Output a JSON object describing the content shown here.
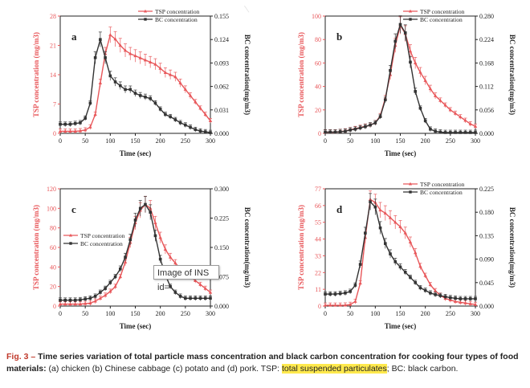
{
  "chart_data": [
    {
      "type": "line",
      "panel_label": "a",
      "xlabel": "Time (sec)",
      "ylabel_left": "TSP concentration (mg/m3)",
      "ylabel_right": "BC concentration(mg/m3)",
      "xlim": [
        0,
        300
      ],
      "ylim_left": [
        0,
        28
      ],
      "ylim_right": [
        0,
        0.155
      ],
      "xticks": [
        0,
        50,
        100,
        150,
        200,
        250,
        300
      ],
      "yticks_left": [
        0,
        7,
        14,
        21,
        28
      ],
      "yticks_right": [
        0.0,
        0.031,
        0.062,
        0.093,
        0.124,
        0.155
      ],
      "ytick_labels_right": [
        "0.000",
        "0.031",
        "0.062",
        "0.093",
        "0.124",
        "0.155"
      ],
      "legend_position": "top-right",
      "series": [
        {
          "name": "TSP concentration",
          "axis": "left",
          "color": "#e8575a",
          "marker": "triangle",
          "x": [
            0,
            10,
            20,
            30,
            40,
            50,
            60,
            70,
            80,
            90,
            100,
            110,
            120,
            130,
            140,
            150,
            160,
            170,
            180,
            190,
            200,
            210,
            220,
            230,
            240,
            250,
            260,
            270,
            280,
            290,
            300
          ],
          "y": [
            0.5,
            0.5,
            0.5,
            0.5,
            0.6,
            0.8,
            1.5,
            4.5,
            12.0,
            19.0,
            23.5,
            22.5,
            21.0,
            19.8,
            19.0,
            18.5,
            18.0,
            17.5,
            17.0,
            16.5,
            15.5,
            14.5,
            14.0,
            13.5,
            12.0,
            10.5,
            9.0,
            7.5,
            6.0,
            4.5,
            3.0
          ]
        },
        {
          "name": "BC concentration",
          "axis": "right",
          "color": "#333333",
          "marker": "square",
          "x": [
            0,
            10,
            20,
            30,
            40,
            50,
            60,
            70,
            80,
            90,
            100,
            110,
            120,
            130,
            140,
            150,
            160,
            170,
            180,
            190,
            200,
            210,
            220,
            230,
            240,
            250,
            260,
            270,
            280,
            290,
            300
          ],
          "y": [
            0.012,
            0.012,
            0.012,
            0.013,
            0.014,
            0.02,
            0.04,
            0.1,
            0.124,
            0.1,
            0.076,
            0.068,
            0.063,
            0.058,
            0.058,
            0.053,
            0.05,
            0.048,
            0.046,
            0.04,
            0.032,
            0.025,
            0.022,
            0.018,
            0.014,
            0.011,
            0.008,
            0.005,
            0.003,
            0.002,
            0.001
          ]
        }
      ]
    },
    {
      "type": "line",
      "panel_label": "b",
      "xlabel": "Time (sec)",
      "ylabel_left": "TSP concentration (mg/m3)",
      "ylabel_right": "BC concentration(mg/m3)",
      "xlim": [
        0,
        300
      ],
      "ylim_left": [
        0,
        100
      ],
      "ylim_right": [
        0,
        0.28
      ],
      "xticks": [
        0,
        50,
        100,
        150,
        200,
        250,
        300
      ],
      "yticks_left": [
        0,
        20,
        40,
        60,
        80,
        100
      ],
      "yticks_right": [
        0.0,
        0.056,
        0.112,
        0.168,
        0.224,
        0.28
      ],
      "ytick_labels_right": [
        "0.000",
        "0.056",
        "0.112",
        "0.168",
        "0.224",
        "0.280"
      ],
      "legend_position": "top-right",
      "series": [
        {
          "name": "TSP concentration",
          "axis": "left",
          "color": "#e8575a",
          "marker": "triangle",
          "x": [
            0,
            10,
            20,
            30,
            40,
            50,
            60,
            70,
            80,
            90,
            100,
            110,
            120,
            130,
            140,
            150,
            160,
            170,
            180,
            190,
            200,
            210,
            220,
            230,
            240,
            250,
            260,
            270,
            280,
            290,
            300
          ],
          "y": [
            1,
            1,
            1,
            1.5,
            2,
            3,
            4,
            5,
            6,
            7,
            9,
            15,
            30,
            50,
            75,
            92,
            85,
            70,
            60,
            52,
            45,
            38,
            32,
            28,
            24,
            20,
            17,
            14,
            11,
            8,
            6
          ]
        },
        {
          "name": "BC concentration",
          "axis": "right",
          "color": "#333333",
          "marker": "square",
          "x": [
            0,
            10,
            20,
            30,
            40,
            50,
            60,
            70,
            80,
            90,
            100,
            110,
            120,
            130,
            140,
            150,
            160,
            170,
            180,
            190,
            200,
            210,
            220,
            230,
            240,
            250,
            260,
            270,
            280,
            290,
            300
          ],
          "y": [
            0.003,
            0.003,
            0.003,
            0.004,
            0.005,
            0.008,
            0.01,
            0.013,
            0.016,
            0.02,
            0.025,
            0.04,
            0.08,
            0.15,
            0.22,
            0.26,
            0.24,
            0.17,
            0.1,
            0.06,
            0.03,
            0.01,
            0.005,
            0.003,
            0.002,
            0.002,
            0.002,
            0.002,
            0.002,
            0.002,
            0.002
          ]
        }
      ]
    },
    {
      "type": "line",
      "panel_label": "c",
      "xlabel": "Time (sec)",
      "ylabel_left": "TSP concentration (mg/m3)",
      "ylabel_right": "BC concentration(mg/m3)",
      "xlim": [
        0,
        300
      ],
      "ylim_left": [
        0,
        120
      ],
      "ylim_right": [
        0,
        0.3
      ],
      "xticks": [
        0,
        50,
        100,
        150,
        200,
        250,
        300
      ],
      "yticks_left": [
        0,
        20,
        40,
        60,
        80,
        100,
        120
      ],
      "yticks_right": [
        0.0,
        0.075,
        0.15,
        0.225,
        0.3
      ],
      "ytick_labels_right": [
        "0.000",
        "0.075",
        "0.150",
        "0.225",
        "0.300"
      ],
      "legend_position": "top-left",
      "series": [
        {
          "name": "TSP concentration",
          "axis": "left",
          "color": "#e8575a",
          "marker": "triangle",
          "x": [
            0,
            10,
            20,
            30,
            40,
            50,
            60,
            70,
            80,
            90,
            100,
            110,
            120,
            130,
            140,
            150,
            160,
            170,
            180,
            190,
            200,
            210,
            220,
            230,
            240,
            250,
            260,
            270,
            280,
            290,
            300
          ],
          "y": [
            2,
            2,
            2,
            2,
            2,
            2.5,
            3,
            5,
            8,
            11,
            15,
            20,
            30,
            45,
            65,
            85,
            98,
            104,
            100,
            85,
            70,
            58,
            50,
            44,
            38,
            34,
            30,
            26,
            22,
            18,
            14
          ]
        },
        {
          "name": "BC concentration",
          "axis": "right",
          "color": "#333333",
          "marker": "square",
          "x": [
            0,
            10,
            20,
            30,
            40,
            50,
            60,
            70,
            80,
            90,
            100,
            110,
            120,
            130,
            140,
            150,
            160,
            170,
            180,
            190,
            200,
            210,
            220,
            230,
            240,
            250,
            260,
            270,
            280,
            290,
            300
          ],
          "y": [
            0.015,
            0.015,
            0.015,
            0.015,
            0.016,
            0.018,
            0.02,
            0.025,
            0.035,
            0.045,
            0.06,
            0.075,
            0.095,
            0.125,
            0.17,
            0.22,
            0.25,
            0.26,
            0.24,
            0.18,
            0.12,
            0.08,
            0.05,
            0.035,
            0.025,
            0.02,
            0.02,
            0.02,
            0.02,
            0.02,
            0.02
          ]
        }
      ]
    },
    {
      "type": "line",
      "panel_label": "d",
      "xlabel": "Time (sec)",
      "ylabel_left": "TSP concentration (mg/m3)",
      "ylabel_right": "BC concentration(mg/m3)",
      "xlim": [
        0,
        300
      ],
      "ylim_left": [
        0,
        77
      ],
      "ylim_right": [
        0,
        0.225
      ],
      "xticks": [
        0,
        50,
        100,
        150,
        200,
        250,
        300
      ],
      "yticks_left": [
        0,
        11,
        22,
        33,
        44,
        55,
        66,
        77
      ],
      "yticks_right": [
        0.0,
        0.045,
        0.09,
        0.135,
        0.18,
        0.225
      ],
      "ytick_labels_right": [
        "0.000",
        "0.045",
        "0.090",
        "0.135",
        "0.180",
        "0.225"
      ],
      "legend_position": "top-right",
      "series": [
        {
          "name": "TSP concentration",
          "axis": "left",
          "color": "#e8575a",
          "marker": "triangle",
          "x": [
            0,
            10,
            20,
            30,
            40,
            50,
            60,
            70,
            80,
            90,
            100,
            110,
            120,
            130,
            140,
            150,
            160,
            170,
            180,
            190,
            200,
            210,
            220,
            230,
            240,
            250,
            260,
            270,
            280,
            290,
            300
          ],
          "y": [
            0.5,
            0.5,
            0.5,
            0.5,
            0.6,
            1,
            3,
            15,
            45,
            70,
            68,
            63,
            61,
            58,
            55,
            52,
            48,
            42,
            35,
            26,
            20,
            14,
            10,
            7,
            5,
            4,
            3,
            2.5,
            2,
            1.5,
            1
          ]
        },
        {
          "name": "BC concentration",
          "axis": "right",
          "color": "#333333",
          "marker": "square",
          "x": [
            0,
            10,
            20,
            30,
            40,
            50,
            60,
            70,
            80,
            90,
            100,
            110,
            120,
            130,
            140,
            150,
            160,
            170,
            180,
            190,
            200,
            210,
            220,
            230,
            240,
            250,
            260,
            270,
            280,
            290,
            300
          ],
          "y": [
            0.023,
            0.023,
            0.023,
            0.024,
            0.025,
            0.028,
            0.04,
            0.08,
            0.14,
            0.2,
            0.19,
            0.15,
            0.12,
            0.1,
            0.085,
            0.075,
            0.065,
            0.055,
            0.045,
            0.035,
            0.03,
            0.025,
            0.022,
            0.02,
            0.018,
            0.016,
            0.015,
            0.014,
            0.014,
            0.014,
            0.014
          ]
        }
      ]
    }
  ],
  "caption": {
    "figure_label": "Fig. 3 –",
    "bold_text": "Time series variation of total particle mass concentration and black carbon concentration for cooking four types of food materials:",
    "body_text": " (a) chicken (b) Chinese cabbage (c) potato and (d) pork. TSP: ",
    "highlight_text": "total suspended particulates",
    "tail_text": "; BC: black carbon."
  },
  "tooltip": {
    "text": "Image of INS id="
  },
  "colors": {
    "tsp": "#e8575a",
    "bc": "#333333",
    "axis_left_text": "#e8575a",
    "axis_right_text": "#222222",
    "caption_label": "#c0392b",
    "highlight": "#ffe94d"
  }
}
